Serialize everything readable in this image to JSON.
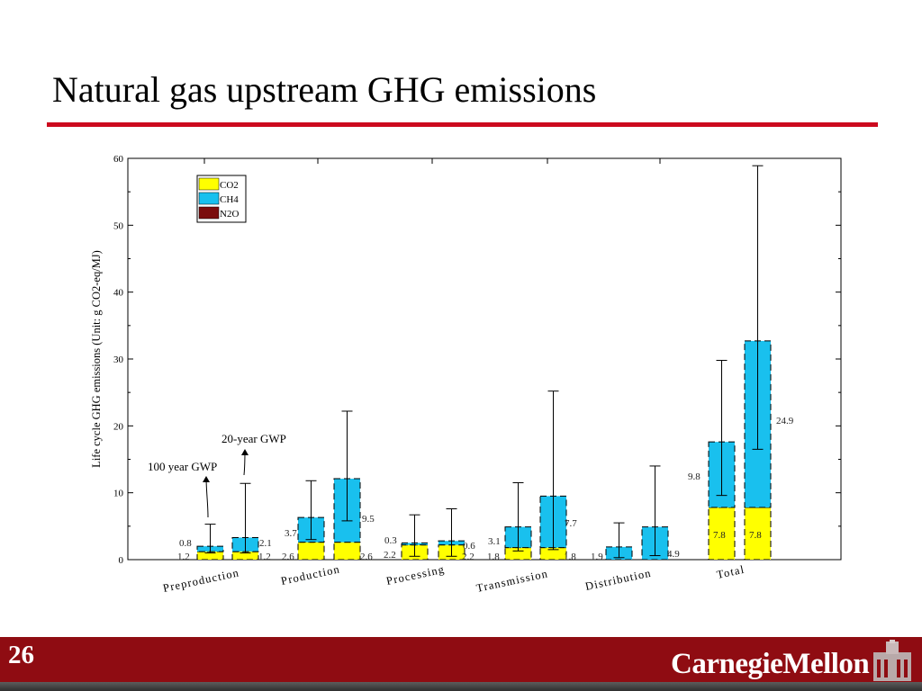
{
  "slide": {
    "title": "Natural gas upstream GHG emissions",
    "number": "26",
    "brand": "CarnegieMellon"
  },
  "colors": {
    "co2": "#ffff00",
    "ch4": "#19c0ee",
    "n2o": "#7a0c0c",
    "accent_rule": "#cc0a1e",
    "footer": "#8f0c12"
  },
  "chart_data": {
    "type": "bar",
    "stacked": true,
    "ylabel": "Life cycle GHG emissions (Unit: g CO2-eq/MJ)",
    "ylim": [
      0,
      60
    ],
    "yticks": [
      "0",
      "10",
      "20",
      "30",
      "40",
      "50",
      "60"
    ],
    "legend": [
      {
        "name": "CO2",
        "color": "#ffff00"
      },
      {
        "name": "CH4",
        "color": "#19c0ee"
      },
      {
        "name": "N2O",
        "color": "#7a0c0c"
      }
    ],
    "legend_position": "top-left",
    "grid": false,
    "categories": [
      "Preproduction",
      "Production",
      "Processing",
      "Transmission",
      "Distribution",
      "Total"
    ],
    "annotations": [
      "100 year GWP",
      "20-year GWP"
    ],
    "bars": [
      {
        "category": "Preproduction",
        "gwp": "100-year",
        "co2": 1.2,
        "ch4": 0.8,
        "err_low": 1.0,
        "err_high": 5.3,
        "co2_label": "1.2",
        "ch4_label": "0.8"
      },
      {
        "category": "Preproduction",
        "gwp": "20-year",
        "co2": 1.2,
        "ch4": 2.1,
        "err_low": 1.0,
        "err_high": 11.4,
        "co2_label": "1.2",
        "ch4_label": "2.1"
      },
      {
        "category": "Production",
        "gwp": "100-year",
        "co2": 2.6,
        "ch4": 3.7,
        "err_low": 3.0,
        "err_high": 11.8,
        "co2_label": "2.6",
        "ch4_label": "3.7"
      },
      {
        "category": "Production",
        "gwp": "20-year",
        "co2": 2.6,
        "ch4": 9.5,
        "err_low": 5.8,
        "err_high": 22.2,
        "co2_label": "2.6",
        "ch4_label": "9.5"
      },
      {
        "category": "Processing",
        "gwp": "100-year",
        "co2": 2.2,
        "ch4": 0.3,
        "err_low": 0.5,
        "err_high": 6.7,
        "co2_label": "2.2",
        "ch4_label": "0.3"
      },
      {
        "category": "Processing",
        "gwp": "20-year",
        "co2": 2.2,
        "ch4": 0.6,
        "err_low": 0.5,
        "err_high": 7.6,
        "co2_label": "2.2",
        "ch4_label": "0.6"
      },
      {
        "category": "Transmission",
        "gwp": "100-year",
        "co2": 1.8,
        "ch4": 3.1,
        "err_low": 1.3,
        "err_high": 11.5,
        "co2_label": "1.8",
        "ch4_label": "3.1"
      },
      {
        "category": "Transmission",
        "gwp": "20-year",
        "co2": 1.8,
        "ch4": 7.7,
        "err_low": 1.5,
        "err_high": 25.2,
        "co2_label": "1.8",
        "ch4_label": "7.7"
      },
      {
        "category": "Distribution",
        "gwp": "100-year",
        "co2": 0,
        "ch4": 1.9,
        "err_low": 0.3,
        "err_high": 5.5,
        "co2_label": "",
        "ch4_label": "1.9"
      },
      {
        "category": "Distribution",
        "gwp": "20-year",
        "co2": 0,
        "ch4": 4.9,
        "err_low": 0.6,
        "err_high": 14.0,
        "co2_label": "",
        "ch4_label": "4.9"
      },
      {
        "category": "Total",
        "gwp": "100-year",
        "co2": 7.8,
        "ch4": 9.8,
        "err_low": 9.6,
        "err_high": 29.8,
        "co2_label": "7.8",
        "ch4_label": "9.8"
      },
      {
        "category": "Total",
        "gwp": "20-year",
        "co2": 7.8,
        "ch4": 24.9,
        "err_low": 16.5,
        "err_high": 58.9,
        "co2_label": "7.8",
        "ch4_label": "24.9"
      }
    ]
  }
}
